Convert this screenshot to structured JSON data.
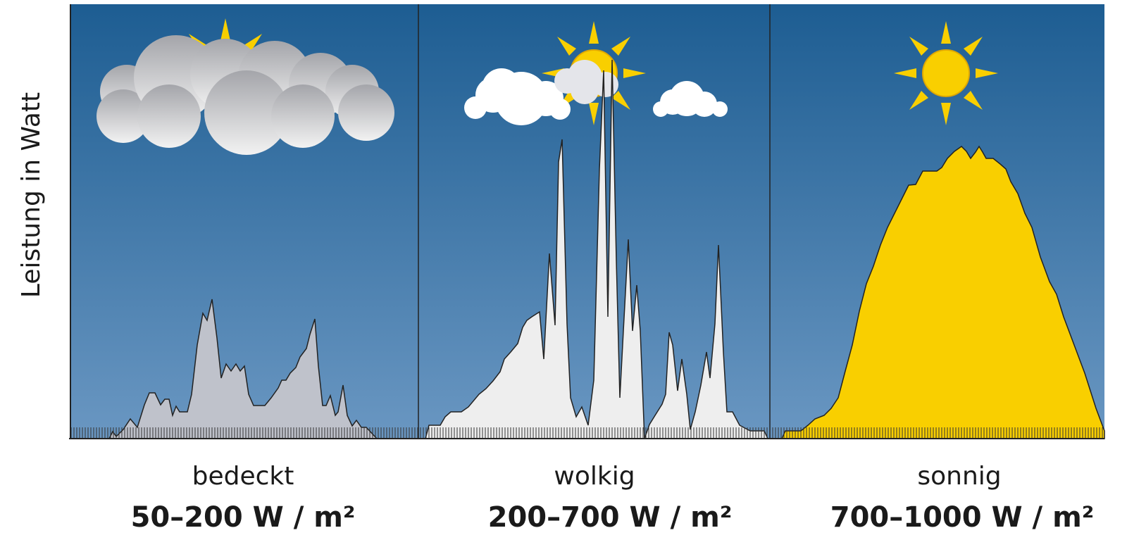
{
  "axis_label": "Leistung in Watt",
  "panels": [
    {
      "label": "bedeckt",
      "range": "50–200 W / m²"
    },
    {
      "label": "wolkig",
      "range": "200–700 W / m²"
    },
    {
      "label": "sonnig",
      "range": "700–1000 W / m²"
    }
  ]
}
